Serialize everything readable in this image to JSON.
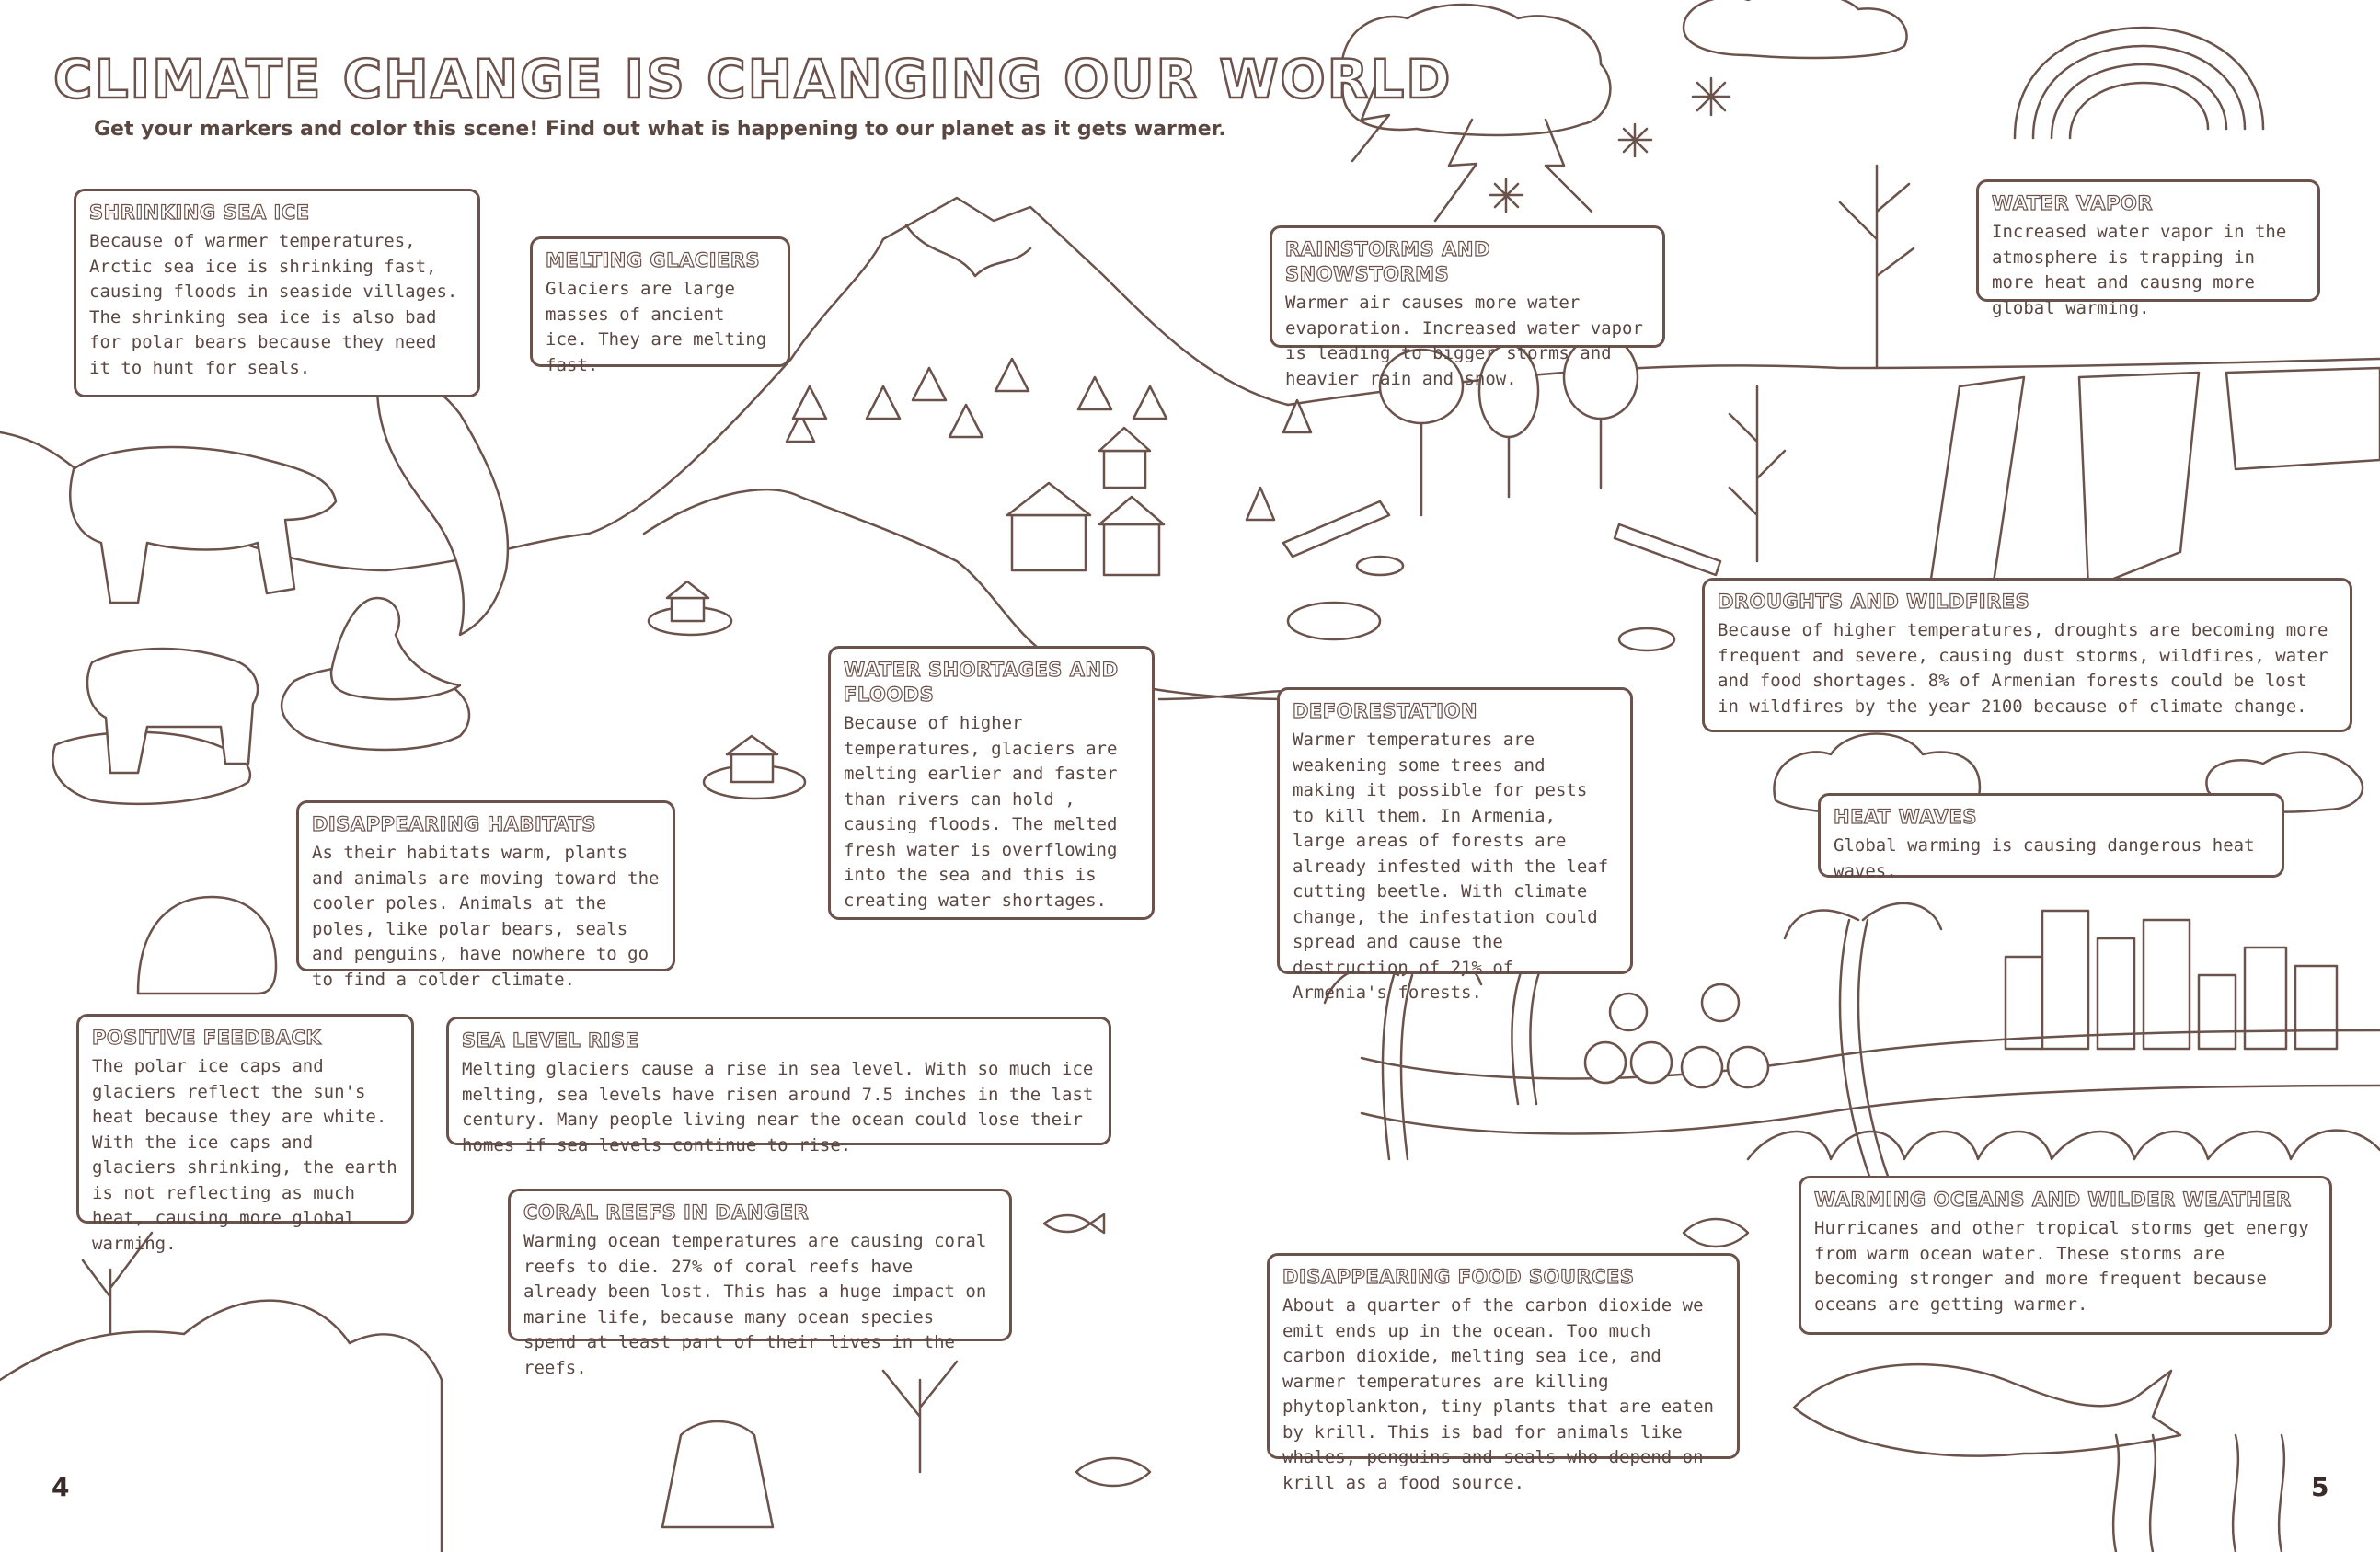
{
  "title": "CLIMATE CHANGE IS CHANGING OUR WORLD",
  "subtitle": "Get your markers and color this scene! Find out what is happening to our planet as it gets warmer.",
  "page_numbers": {
    "left": "4",
    "right": "5"
  },
  "boxes": {
    "shrinking_sea_ice": {
      "heading": "SHRINKING SEA ICE",
      "text": "Because of warmer temperatures, Arctic sea ice is shrinking fast, causing floods in seaside villages. The shrinking sea ice is also bad for polar bears because they need it to hunt for seals."
    },
    "melting_glaciers": {
      "heading": "MELTING GLACIERS",
      "text": "Glaciers are large masses of ancient ice. They are melting fast."
    },
    "rainstorms": {
      "heading": "RAINSTORMS AND SNOWSTORMS",
      "text": "Warmer air causes more water evaporation. Increased water vapor is leading to bigger storms and heavier rain and snow."
    },
    "water_vapor": {
      "heading": "WATER VAPOR",
      "text": "Increased water vapor in the atmosphere is trapping in more heat and causng more global warming."
    },
    "droughts": {
      "heading": "DROUGHTS AND WILDFIRES",
      "text": "Because of higher temperatures, droughts are becoming more frequent and severe, causing dust storms, wildfires, water and food shortages. 8% of Armenian forests could be lost in wildfires by the year 2100 because of climate change."
    },
    "water_shortages": {
      "heading": "WATER SHORTAGES AND FLOODS",
      "text": "Because of higher temperatures, glaciers  are melting earlier and faster than rivers can hold , causing floods. The melted fresh water is overflowing into the sea and this is creating water shortages."
    },
    "deforestation": {
      "heading": "DEFORESTATION",
      "text": "Warmer temperatures are weakening some trees and making it possible for pests to kill them. In Armenia, large areas of forests are already infested with the leaf cutting beetle. With climate change, the infestation could spread and cause the destruction of 21% of Armenia's forests."
    },
    "heat_waves": {
      "heading": "HEAT WAVES",
      "text": "Global warming is causing dangerous heat waves."
    },
    "disappearing_habitats": {
      "heading": "DISAPPEARING HABITATS",
      "text": "As their habitats warm, plants and animals are moving toward the cooler poles. Animals at the poles, like polar bears, seals and penguins, have nowhere to go to find a colder climate."
    },
    "positive_feedback": {
      "heading": "POSITIVE FEEDBACK",
      "text": "The polar ice caps and glaciers reflect the sun's heat because they are white. With the ice caps and glaciers shrinking, the earth is not reflecting as much heat, causing more global warming."
    },
    "sea_level_rise": {
      "heading": "SEA LEVEL RISE",
      "text": "Melting glaciers cause a rise in sea level. With so much ice melting, sea levels have risen around 7.5 inches in the last century. Many people living near the ocean could lose their homes if sea levels continue to rise."
    },
    "coral_reefs": {
      "heading": "CORAL REEFS IN DANGER",
      "text": "Warming ocean temperatures are causing coral reefs to die. 27% of coral reefs have already been lost. This has a huge impact on marine life, because many ocean species spend at least part of their lives in the reefs."
    },
    "warming_oceans": {
      "heading": "WARMING OCEANS AND WILDER WEATHER",
      "text": "Hurricanes and other tropical storms get energy from warm ocean water. These storms are becoming stronger and more frequent because oceans are getting warmer."
    },
    "food_sources": {
      "heading": "DISAPPEARING FOOD SOURCES",
      "text": "About a quarter of the carbon dioxide we emit ends up in the ocean. Too much carbon dioxide, melting sea ice, and warmer temperatures are killing phytoplankton, tiny plants that are eaten by krill. This is bad for animals like whales, penguins and seals who depend on krill as a food source."
    }
  }
}
